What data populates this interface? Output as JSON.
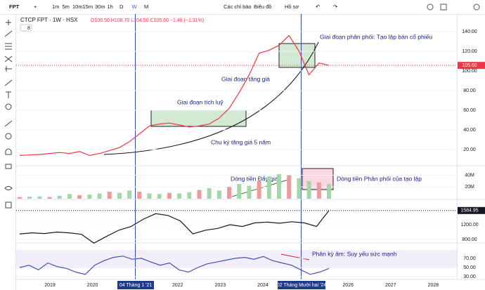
{
  "toolbar": {
    "symbol": "FPT",
    "intervals": [
      "1m",
      "5m",
      "10m",
      "15m",
      "30m",
      "1h",
      "D",
      "W",
      "M"
    ],
    "indicators": "Các chỉ báo",
    "chart_menu": "Biểu đồ",
    "profile": "Hồ sơ"
  },
  "legend": {
    "title": "CTCP FPT · 1W · HSX",
    "ohlc": "O106.50 H108.70 L104.50 C105.60 −1.40 (−1.31%)",
    "badge": "8"
  },
  "annotations": [
    "Giai đoạn phân phối: Tạo lập bán cổ phiếu",
    "Giai đoạn tăng giá",
    "Giai đoạn tích luỹ",
    "Chu kỳ tăng giá 5 năm",
    "Dòng tiền Đẩy giá",
    "Dòng tiền Phân phối của tạo lập",
    "Phân kỳ âm: Suy yếu sức mạnh"
  ],
  "price": {
    "ylim": [
      4.3,
      156.4
    ],
    "yticks": [
      {
        "value": 140,
        "label": "140.00"
      },
      {
        "value": 120,
        "label": "120.00"
      },
      {
        "value": 100,
        "label": "100.00"
      },
      {
        "value": 80,
        "label": "80.00"
      },
      {
        "value": 60,
        "label": "60.00"
      },
      {
        "value": 40,
        "label": "40.00"
      },
      {
        "value": 20,
        "label": "20.00"
      }
    ],
    "last": {
      "value": 105.6,
      "label": "105.60"
    },
    "values": [
      14,
      14.5,
      15,
      16,
      17,
      16,
      18,
      14,
      16,
      19,
      22,
      28,
      36,
      44,
      46,
      47,
      45,
      43,
      44,
      46,
      52,
      62,
      78,
      96,
      118,
      121,
      126,
      136,
      120,
      96,
      108,
      105.6
    ]
  },
  "volume": {
    "ylim": [
      0,
      55000000
    ],
    "yticks": [
      {
        "value": 40000000,
        "label": "40M"
      },
      {
        "value": 20000000,
        "label": "20M"
      }
    ],
    "values": [
      3000000,
      3500000,
      4000000,
      3000000,
      5000000,
      8000000,
      6000000,
      7000000,
      9000000,
      12000000,
      10000000,
      14000000,
      12000000,
      9000000,
      8000000,
      10000000,
      9000000,
      11000000,
      15000000,
      18000000,
      14000000,
      20000000,
      25000000,
      22000000,
      30000000,
      38000000,
      42000000,
      40000000,
      35000000,
      30000000,
      28000000,
      25000000
    ]
  },
  "index": {
    "ylim": [
      724,
      1867
    ],
    "yticks": [
      {
        "value": 1200,
        "label": "1200.00"
      },
      {
        "value": 800,
        "label": "800.00"
      }
    ],
    "last": {
      "value": 1584.95,
      "label": "1584.95"
    },
    "values": [
      950,
      980,
      960,
      1000,
      980,
      940,
      700,
      880,
      1050,
      1150,
      1350,
      1500,
      1450,
      1300,
      950,
      1050,
      1100,
      1200,
      1150,
      1250,
      1270,
      1240,
      1280,
      1250,
      1150,
      1584.95
    ]
  },
  "rsi": {
    "ylim": [
      24,
      102
    ],
    "yticks": [
      {
        "value": 70,
        "label": "70.00"
      },
      {
        "value": 50,
        "label": "50.00"
      },
      {
        "value": 30,
        "label": "30.00"
      }
    ],
    "values": [
      50,
      55,
      45,
      60,
      52,
      48,
      40,
      35,
      55,
      65,
      72,
      75,
      68,
      70,
      62,
      55,
      60,
      45,
      40,
      50,
      58,
      62,
      66,
      70,
      72,
      68,
      74,
      65,
      60,
      55,
      45,
      35,
      40,
      48
    ]
  },
  "time_axis": {
    "years": [
      "2019",
      "2020",
      "2022",
      "2023",
      "2024",
      "2026",
      "2027",
      "2028"
    ],
    "markers": [
      "04 Tháng 1 '21",
      "02 Tháng Mười hai '24"
    ]
  }
}
